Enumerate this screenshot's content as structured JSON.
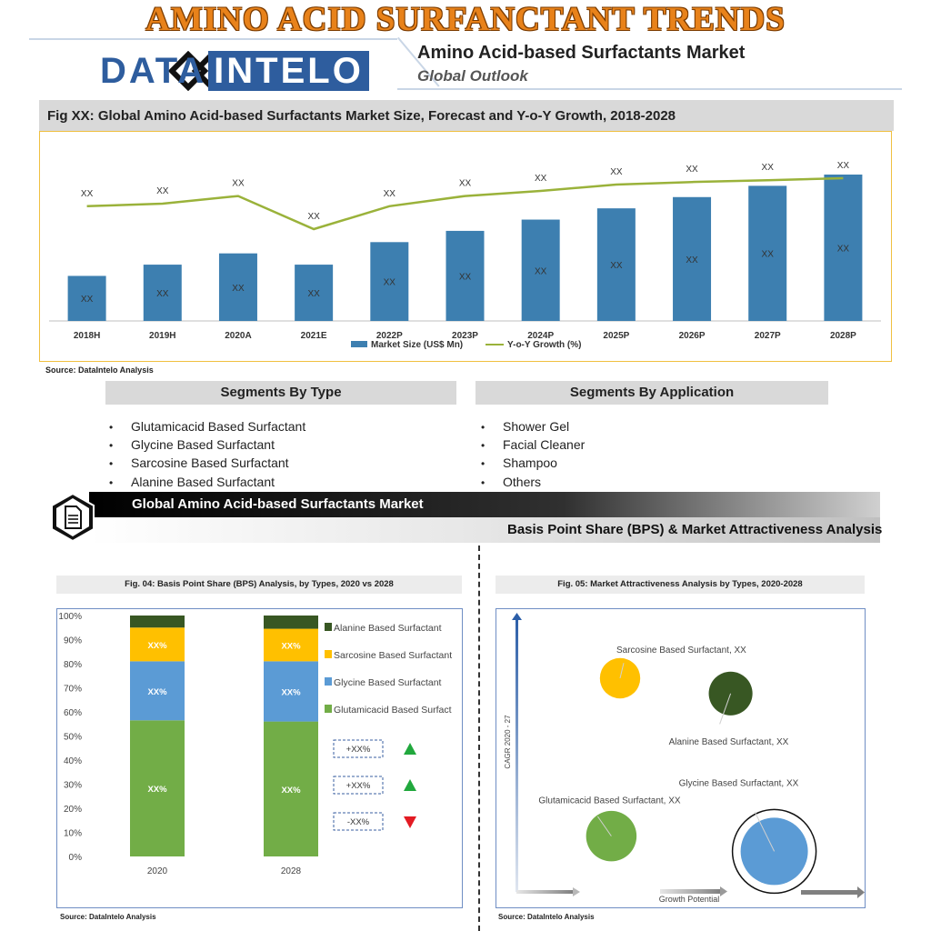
{
  "header": {
    "main_title": "AMINO ACID SURFANCTANT TRENDS",
    "logo_part1": "DATA",
    "logo_part2": "INTELO",
    "report_title": "Amino Acid-based Surfactants Market",
    "report_subtitle": "Global Outlook"
  },
  "fig1": {
    "title": "Fig XX: Global Amino Acid-based Surfactants Market Size, Forecast and Y-o-Y Growth, 2018-2028",
    "source": "Source: DataIntelo Analysis"
  },
  "segments": {
    "type_header": "Segments By Type",
    "type_items": [
      "Glutamicacid Based Surfactant",
      "Glycine Based Surfactant",
      "Sarcosine Based Surfactant",
      "Alanine Based Surfactant"
    ],
    "application_header": "Segments By Application",
    "application_items": [
      "Shower Gel",
      "Facial Cleaner",
      "Shampoo",
      "Others"
    ]
  },
  "banner": {
    "title": "Global Amino Acid-based Surfactants Market",
    "subtitle": "Basis Point Share (BPS) & Market Attractiveness Analysis"
  },
  "fig4": {
    "title": "Fig. 04: Basis Point Share (BPS) Analysis, by Types, 2020 vs 2028",
    "source": "Source: DataIntelo Analysis",
    "change_labels": [
      "+XX%",
      "+XX%",
      "-XX%"
    ],
    "change_directions": [
      "up",
      "up",
      "down"
    ]
  },
  "fig5": {
    "title": "Fig. 05: Market Attractiveness Analysis by Types, 2020-2028",
    "source": "Source: DataIntelo Analysis"
  },
  "colors": {
    "bar_blue": "#3d7fb0",
    "line_green": "#9ab23a",
    "glutamic": "#72ad47",
    "glycine": "#5b9bd5",
    "sarcosine": "#ffc000",
    "alanine": "#385723",
    "arrow_up": "#21a83d",
    "arrow_down": "#e31b23",
    "title_orange": "#e8821a",
    "logo_blue": "#2e5d9e"
  },
  "chart_data": [
    {
      "type": "bar",
      "categories": [
        "2018H",
        "2019H",
        "2020A",
        "2021E",
        "2022P",
        "2023P",
        "2024P",
        "2025P",
        "2026P",
        "2027P",
        "2028P"
      ],
      "series": [
        {
          "name": "Market Size (US$ Mn)",
          "kind": "bar",
          "values": [
            40,
            50,
            60,
            50,
            70,
            80,
            90,
            100,
            110,
            120,
            130
          ],
          "labels": [
            "XX",
            "XX",
            "XX",
            "XX",
            "XX",
            "XX",
            "XX",
            "XX",
            "XX",
            "XX",
            "XX"
          ]
        },
        {
          "name": "Y-o-Y Growth (%)",
          "kind": "line",
          "values": [
            10,
            11,
            14,
            1,
            10,
            14,
            16,
            18.5,
            19.5,
            20.2,
            21
          ],
          "labels": [
            "XX",
            "XX",
            "XX",
            "XX",
            "XX",
            "XX",
            "XX",
            "XX",
            "XX",
            "XX",
            "XX"
          ]
        }
      ],
      "legend": "bottom",
      "grid": false
    },
    {
      "type": "bar",
      "stacked": true,
      "categories": [
        "2020",
        "2028"
      ],
      "y_ticks": [
        "0%",
        "10%",
        "20%",
        "30%",
        "40%",
        "50%",
        "60%",
        "70%",
        "80%",
        "90%",
        "100%"
      ],
      "ylim": [
        0,
        100
      ],
      "series": [
        {
          "name": "Glutamicacid Based Surfact",
          "values": [
            56.5,
            56
          ],
          "labels": [
            "XX%",
            "XX%"
          ]
        },
        {
          "name": "Glycine Based Surfactant",
          "values": [
            24.5,
            25
          ],
          "labels": [
            "XX%",
            "XX%"
          ]
        },
        {
          "name": "Sarcosine Based Surfactant",
          "values": [
            14,
            13.5
          ],
          "labels": [
            "XX%",
            "XX%"
          ]
        },
        {
          "name": "Alanine Based Surfactant",
          "values": [
            5,
            5.5
          ],
          "labels": [
            "",
            ""
          ]
        }
      ],
      "legend": "right"
    },
    {
      "type": "scatter",
      "bubble": true,
      "xlabel": "Growth Potential",
      "ylabel": "CAGR 2020 - 27",
      "points": [
        {
          "label": "Sarcosine Based Surfactant, XX",
          "x": 0.3,
          "y": 0.8,
          "size": 0.6
        },
        {
          "label": "Alanine Based Surfactant, XX",
          "x": 0.68,
          "y": 0.74,
          "size": 0.65
        },
        {
          "label": "Glutamicacid Based Surfactant, XX",
          "x": 0.27,
          "y": 0.18,
          "size": 0.75
        },
        {
          "label": "Glycine Based Surfactant, XX",
          "x": 0.83,
          "y": 0.12,
          "size": 1.0
        }
      ],
      "highlighted": "Glycine Based Surfactant, XX"
    }
  ]
}
